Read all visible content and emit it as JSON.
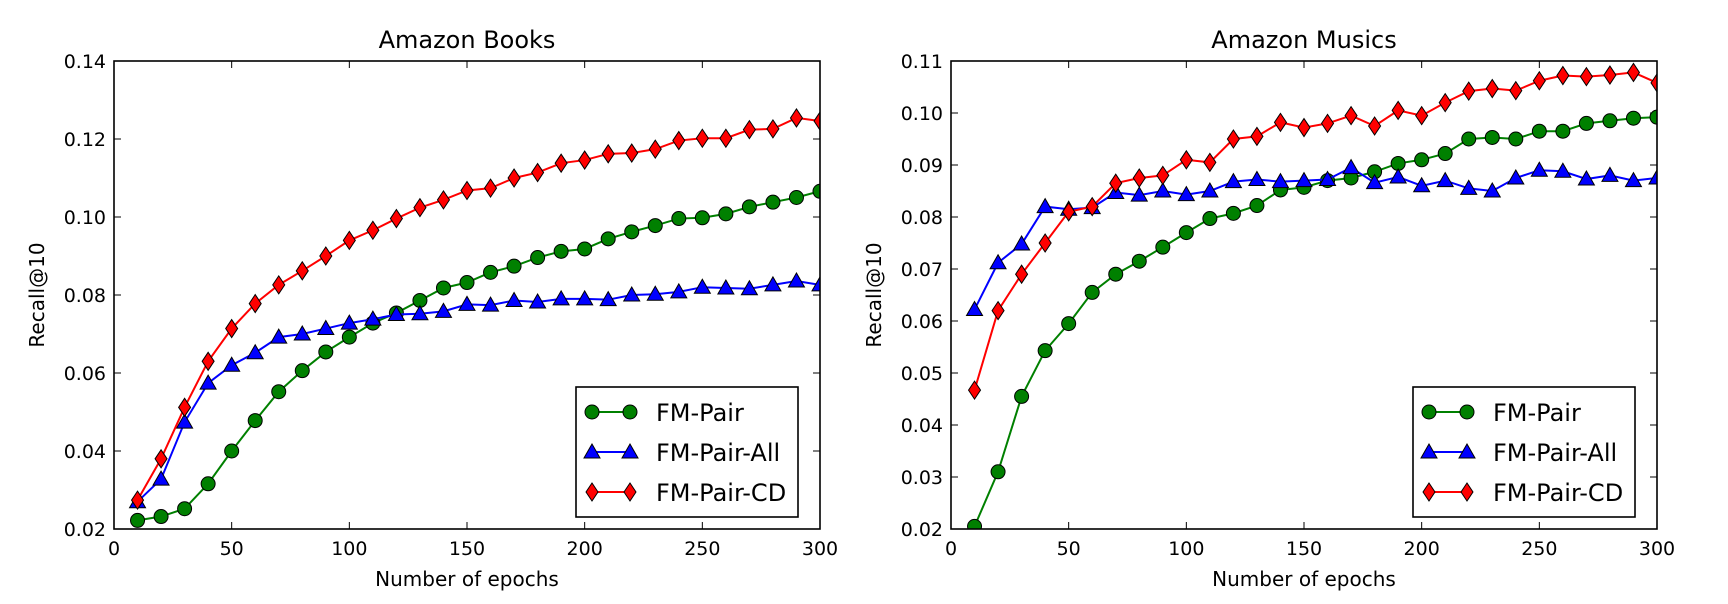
{
  "chart_data": [
    {
      "type": "line",
      "title": "Amazon Books",
      "xlabel": "Number of epochs",
      "ylabel": "Recall@10",
      "xlim": [
        0,
        300
      ],
      "ylim": [
        0.02,
        0.14
      ],
      "xticks": [
        0,
        50,
        100,
        150,
        200,
        250,
        300
      ],
      "xtick_labels": [
        "0",
        "50",
        "100",
        "150",
        "200",
        "250",
        "300"
      ],
      "yticks": [
        0.02,
        0.04,
        0.06,
        0.08,
        0.1,
        0.12,
        0.14
      ],
      "ytick_labels": [
        "0.02",
        "0.04",
        "0.06",
        "0.08",
        "0.10",
        "0.12",
        "0.14"
      ],
      "legend_position": "bottom-right",
      "x": [
        10,
        20,
        30,
        40,
        50,
        60,
        70,
        80,
        90,
        100,
        110,
        120,
        130,
        140,
        150,
        160,
        170,
        180,
        190,
        200,
        210,
        220,
        230,
        240,
        250,
        260,
        270,
        280,
        290,
        300
      ],
      "series": [
        {
          "name": "FM-Pair",
          "color": "#008000",
          "marker": "circle",
          "values": [
            0.0222,
            0.0232,
            0.0252,
            0.0316,
            0.04,
            0.0478,
            0.0552,
            0.0606,
            0.0654,
            0.0692,
            0.0728,
            0.0754,
            0.0786,
            0.0818,
            0.0832,
            0.0858,
            0.0874,
            0.0896,
            0.0912,
            0.0918,
            0.0944,
            0.0962,
            0.0978,
            0.0996,
            0.0998,
            0.1008,
            0.1026,
            0.1038,
            0.105,
            0.1066
          ]
        },
        {
          "name": "FM-Pair-All",
          "color": "#0000ff",
          "marker": "triangle",
          "values": [
            0.027,
            0.0328,
            0.0474,
            0.0574,
            0.062,
            0.0652,
            0.0692,
            0.07,
            0.0714,
            0.0728,
            0.0738,
            0.075,
            0.0752,
            0.0758,
            0.0776,
            0.0774,
            0.0786,
            0.0782,
            0.079,
            0.079,
            0.0788,
            0.08,
            0.0802,
            0.0808,
            0.082,
            0.0818,
            0.0816,
            0.0826,
            0.0836,
            0.0826
          ]
        },
        {
          "name": "FM-Pair-CD",
          "color": "#ff0000",
          "marker": "diamond",
          "values": [
            0.0274,
            0.038,
            0.0512,
            0.063,
            0.0714,
            0.0778,
            0.0826,
            0.0862,
            0.09,
            0.094,
            0.0966,
            0.0996,
            0.1024,
            0.1044,
            0.1068,
            0.1074,
            0.11,
            0.1114,
            0.1138,
            0.1146,
            0.1162,
            0.1164,
            0.1174,
            0.1196,
            0.1202,
            0.1202,
            0.1224,
            0.1226,
            0.1254,
            0.1246
          ]
        }
      ]
    },
    {
      "type": "line",
      "title": "Amazon Musics",
      "xlabel": "Number of epochs",
      "ylabel": "Recall@10",
      "xlim": [
        0,
        300
      ],
      "ylim": [
        0.02,
        0.11
      ],
      "xticks": [
        0,
        50,
        100,
        150,
        200,
        250,
        300
      ],
      "xtick_labels": [
        "0",
        "50",
        "100",
        "150",
        "200",
        "250",
        "300"
      ],
      "yticks": [
        0.02,
        0.03,
        0.04,
        0.05,
        0.06,
        0.07,
        0.08,
        0.09,
        0.1,
        0.11
      ],
      "ytick_labels": [
        "0.02",
        "0.03",
        "0.04",
        "0.05",
        "0.06",
        "0.07",
        "0.08",
        "0.09",
        "0.10",
        "0.11"
      ],
      "legend_position": "bottom-right",
      "x": [
        10,
        20,
        30,
        40,
        50,
        60,
        70,
        80,
        90,
        100,
        110,
        120,
        130,
        140,
        150,
        160,
        170,
        180,
        190,
        200,
        210,
        220,
        230,
        240,
        250,
        260,
        270,
        280,
        290,
        300
      ],
      "series": [
        {
          "name": "FM-Pair",
          "color": "#008000",
          "marker": "circle",
          "values": [
            0.0205,
            0.031,
            0.0455,
            0.0543,
            0.0595,
            0.0655,
            0.069,
            0.0715,
            0.0742,
            0.077,
            0.0797,
            0.0807,
            0.0822,
            0.0852,
            0.0857,
            0.087,
            0.0875,
            0.0887,
            0.0903,
            0.091,
            0.0922,
            0.095,
            0.0953,
            0.095,
            0.0965,
            0.0965,
            0.098,
            0.0985,
            0.099,
            0.0992
          ]
        },
        {
          "name": "FM-Pair-All",
          "color": "#0000ff",
          "marker": "triangle",
          "values": [
            0.0622,
            0.0712,
            0.0748,
            0.082,
            0.0815,
            0.0818,
            0.0847,
            0.0842,
            0.085,
            0.0843,
            0.085,
            0.0868,
            0.0872,
            0.0868,
            0.087,
            0.0872,
            0.0895,
            0.0866,
            0.0877,
            0.086,
            0.087,
            0.0855,
            0.085,
            0.0875,
            0.089,
            0.0888,
            0.0873,
            0.088,
            0.087,
            0.0875
          ]
        },
        {
          "name": "FM-Pair-CD",
          "color": "#ff0000",
          "marker": "diamond",
          "values": [
            0.0467,
            0.062,
            0.069,
            0.075,
            0.081,
            0.082,
            0.0865,
            0.0875,
            0.088,
            0.091,
            0.0905,
            0.095,
            0.0955,
            0.0982,
            0.0972,
            0.098,
            0.0995,
            0.0975,
            0.1005,
            0.0995,
            0.102,
            0.1042,
            0.1047,
            0.1043,
            0.1062,
            0.1072,
            0.107,
            0.1073,
            0.1078,
            0.1058
          ]
        }
      ]
    }
  ]
}
